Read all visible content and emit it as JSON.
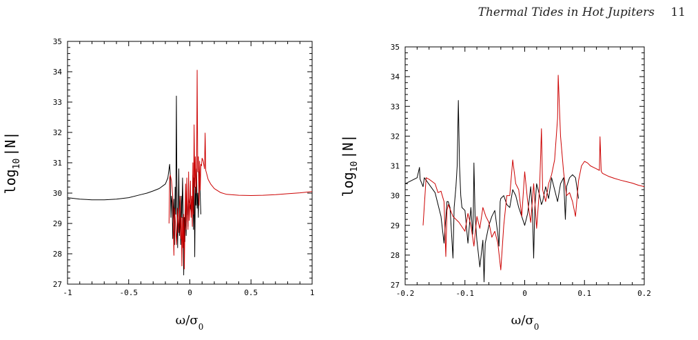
{
  "header": {
    "title": "Thermal Tides in Hot Jupiters",
    "page_number": "11"
  },
  "chart_data": [
    {
      "type": "line",
      "title": "",
      "ylabel": "log10|N|",
      "ylabel_parts": {
        "pre": "log",
        "sub": "10",
        "post": "|N|"
      },
      "xlabel": "ω/σ0",
      "xlabel_parts": {
        "main": "ω/σ",
        "sub": "0"
      },
      "xlim": [
        -1,
        1
      ],
      "ylim": [
        27,
        35
      ],
      "xticks": [
        -1,
        -0.5,
        0,
        0.5,
        1
      ],
      "xtick_labels": [
        "-1",
        "-0.5",
        "0",
        "0.5",
        "1"
      ],
      "yticks": [
        27,
        28,
        29,
        30,
        31,
        32,
        33,
        34,
        35
      ],
      "ytick_labels": [
        "27",
        "28",
        "29",
        "30",
        "31",
        "32",
        "33",
        "34",
        "35"
      ],
      "grid": false,
      "series": [
        {
          "color": "#000000",
          "x": [
            -1.0,
            -0.9,
            -0.8,
            -0.7,
            -0.6,
            -0.5,
            -0.4,
            -0.35,
            -0.3,
            -0.25,
            -0.2,
            -0.18,
            -0.165,
            -0.16,
            -0.155,
            -0.15,
            -0.145,
            -0.14,
            -0.13,
            -0.125,
            -0.12,
            -0.115,
            -0.11,
            -0.105,
            -0.1,
            -0.095,
            -0.09,
            -0.085,
            -0.08,
            -0.075,
            -0.07,
            -0.065,
            -0.06,
            -0.055,
            -0.05,
            -0.045,
            -0.04,
            -0.035,
            -0.03,
            -0.025,
            -0.02,
            -0.015,
            -0.01,
            -0.005,
            0.0,
            0.005,
            0.01,
            0.015,
            0.02,
            0.025,
            0.03,
            0.035,
            0.04,
            0.045,
            0.05,
            0.055,
            0.06,
            0.065,
            0.07,
            0.075,
            0.08,
            0.085,
            0.09
          ],
          "y": [
            29.85,
            29.8,
            29.78,
            29.78,
            29.8,
            29.85,
            29.95,
            30.0,
            30.07,
            30.15,
            30.3,
            30.5,
            30.95,
            30.6,
            29.2,
            29.9,
            29.7,
            28.5,
            29.8,
            28.3,
            30.2,
            29.3,
            33.2,
            29.5,
            28.2,
            29.5,
            30.8,
            28.6,
            29.4,
            28.3,
            29.9,
            29.2,
            30.5,
            29.6,
            27.3,
            29.2,
            28.4,
            29.5,
            28.6,
            30.3,
            29.3,
            28.9,
            29.9,
            29.7,
            29.7,
            29.5,
            29.4,
            29.8,
            29.3,
            30.6,
            28.8,
            30.5,
            27.9,
            30.2,
            29.6,
            30.8,
            29.5,
            30.0,
            29.2,
            30.7,
            30.6,
            29.9,
            29.3
          ]
        },
        {
          "color": "#cc0000",
          "x": [
            -0.17,
            -0.165,
            -0.16,
            -0.15,
            -0.14,
            -0.13,
            -0.125,
            -0.12,
            -0.11,
            -0.1,
            -0.09,
            -0.08,
            -0.075,
            -0.07,
            -0.065,
            -0.06,
            -0.055,
            -0.05,
            -0.045,
            -0.04,
            -0.035,
            -0.03,
            -0.025,
            -0.02,
            -0.015,
            -0.01,
            -0.005,
            0.0,
            0.005,
            0.01,
            0.015,
            0.02,
            0.025,
            0.03,
            0.035,
            0.04,
            0.045,
            0.05,
            0.055,
            0.06,
            0.065,
            0.07,
            0.075,
            0.08,
            0.085,
            0.09,
            0.095,
            0.1,
            0.11,
            0.12,
            0.125,
            0.13,
            0.14,
            0.15,
            0.17,
            0.2,
            0.25,
            0.3,
            0.4,
            0.5,
            0.6,
            0.7,
            0.8,
            0.9,
            1.0
          ],
          "y": [
            29.0,
            30.5,
            30.6,
            30.4,
            29.9,
            27.95,
            29.5,
            29.2,
            28.3,
            29.5,
            28.7,
            29.9,
            28.5,
            29.2,
            27.6,
            29.2,
            28.2,
            29.3,
            27.5,
            29.0,
            30.3,
            28.8,
            30.5,
            29.3,
            28.8,
            30.7,
            29.1,
            29.6,
            30.4,
            29.2,
            29.9,
            28.9,
            31.0,
            29.3,
            32.25,
            30.2,
            31.2,
            30.0,
            30.5,
            34.05,
            30.7,
            31.2,
            29.6,
            31.05,
            30.1,
            30.95,
            30.9,
            31.15,
            31.05,
            30.8,
            31.98,
            30.75,
            30.6,
            30.45,
            30.3,
            30.15,
            30.02,
            29.96,
            29.93,
            29.92,
            29.93,
            29.95,
            29.98,
            30.01,
            30.05
          ]
        }
      ]
    },
    {
      "type": "line",
      "title": "",
      "ylabel": "log10|N|",
      "ylabel_parts": {
        "pre": "log",
        "sub": "10",
        "post": "|N|"
      },
      "xlabel": "ω/σ0",
      "xlabel_parts": {
        "main": "ω/σ",
        "sub": "0"
      },
      "xlim": [
        -0.2,
        0.2
      ],
      "ylim": [
        27,
        35
      ],
      "xticks": [
        -0.2,
        -0.1,
        0,
        0.1,
        0.2
      ],
      "xtick_labels": [
        "-0.2",
        "-0.1",
        "0",
        "0.1",
        "0.2"
      ],
      "yticks": [
        27,
        28,
        29,
        30,
        31,
        32,
        33,
        34,
        35
      ],
      "ytick_labels": [
        "27",
        "28",
        "29",
        "30",
        "31",
        "32",
        "33",
        "34",
        "35"
      ],
      "grid": false,
      "series": [
        {
          "color": "#000000",
          "x": [
            -0.2,
            -0.19,
            -0.18,
            -0.176,
            -0.175,
            -0.17,
            -0.168,
            -0.15,
            -0.14,
            -0.135,
            -0.13,
            -0.128,
            -0.125,
            -0.12,
            -0.118,
            -0.115,
            -0.113,
            -0.111,
            -0.109,
            -0.107,
            -0.105,
            -0.1,
            -0.095,
            -0.09,
            -0.087,
            -0.086,
            -0.085,
            -0.083,
            -0.08,
            -0.075,
            -0.07,
            -0.068,
            -0.066,
            -0.064,
            -0.062,
            -0.06,
            -0.055,
            -0.05,
            -0.045,
            -0.043,
            -0.041,
            -0.04,
            -0.035,
            -0.03,
            -0.025,
            -0.02,
            -0.015,
            -0.01,
            -0.005,
            0.0,
            0.005,
            0.01,
            0.013,
            0.015,
            0.017,
            0.02,
            0.025,
            0.028,
            0.03,
            0.035,
            0.04,
            0.045,
            0.05,
            0.055,
            0.06,
            0.065,
            0.068,
            0.07,
            0.075,
            0.08,
            0.085,
            0.09
          ],
          "y": [
            30.4,
            30.5,
            30.6,
            30.95,
            30.55,
            30.3,
            30.6,
            30.1,
            29.3,
            28.4,
            29.8,
            29.8,
            29.6,
            27.9,
            29.6,
            30.3,
            31.0,
            33.2,
            31.0,
            30.0,
            29.6,
            29.5,
            28.4,
            29.6,
            28.7,
            29.3,
            31.1,
            29.3,
            28.5,
            27.6,
            28.5,
            27.1,
            28.4,
            28.6,
            28.8,
            29.0,
            29.3,
            29.5,
            28.7,
            28.3,
            29.8,
            29.9,
            30.0,
            29.7,
            29.6,
            30.2,
            30.0,
            29.6,
            29.3,
            29.0,
            29.4,
            30.3,
            29.4,
            27.9,
            29.6,
            30.4,
            30.0,
            29.7,
            29.8,
            30.3,
            29.9,
            30.6,
            30.2,
            29.8,
            30.4,
            30.6,
            29.2,
            30.3,
            30.6,
            30.7,
            30.6,
            29.9
          ]
        },
        {
          "color": "#cc0000",
          "x": [
            -0.17,
            -0.165,
            -0.16,
            -0.15,
            -0.145,
            -0.14,
            -0.135,
            -0.132,
            -0.13,
            -0.128,
            -0.12,
            -0.11,
            -0.1,
            -0.095,
            -0.09,
            -0.085,
            -0.08,
            -0.075,
            -0.07,
            -0.065,
            -0.06,
            -0.055,
            -0.05,
            -0.045,
            -0.04,
            -0.035,
            -0.03,
            -0.025,
            -0.02,
            -0.015,
            -0.01,
            -0.005,
            0.0,
            0.005,
            0.01,
            0.015,
            0.02,
            0.025,
            0.028,
            0.03,
            0.035,
            0.04,
            0.045,
            0.05,
            0.055,
            0.056,
            0.06,
            0.065,
            0.07,
            0.075,
            0.08,
            0.085,
            0.09,
            0.095,
            0.1,
            0.105,
            0.11,
            0.115,
            0.12,
            0.125,
            0.126,
            0.128,
            0.13,
            0.14,
            0.15,
            0.16,
            0.17,
            0.18,
            0.19,
            0.2
          ],
          "y": [
            29.0,
            30.6,
            30.55,
            30.4,
            30.1,
            30.15,
            29.8,
            27.95,
            29.5,
            29.7,
            29.3,
            29.1,
            28.8,
            29.4,
            29.0,
            28.3,
            29.3,
            28.9,
            29.6,
            29.3,
            29.1,
            28.6,
            28.8,
            28.4,
            27.5,
            29.0,
            30.0,
            30.0,
            31.2,
            30.4,
            30.2,
            29.3,
            30.8,
            29.8,
            29.1,
            30.4,
            28.9,
            30.3,
            32.25,
            30.2,
            29.8,
            30.4,
            30.7,
            31.2,
            32.6,
            34.05,
            32.0,
            30.8,
            30.0,
            30.1,
            29.8,
            29.3,
            30.5,
            31.0,
            31.15,
            31.1,
            31.0,
            30.95,
            30.9,
            30.85,
            31.98,
            30.82,
            30.75,
            30.65,
            30.58,
            30.52,
            30.47,
            30.42,
            30.35,
            30.3
          ]
        }
      ]
    }
  ]
}
